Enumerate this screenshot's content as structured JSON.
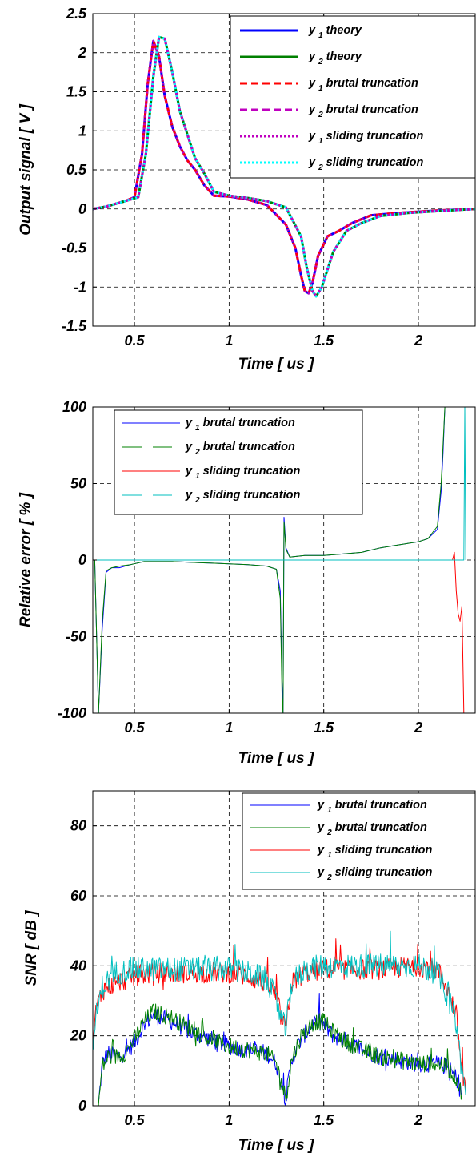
{
  "chart_data": [
    {
      "type": "line",
      "title": "",
      "xlabel": "Time [ us ]",
      "ylabel": "Output signal [ V ]",
      "xlim": [
        0.28,
        2.3
      ],
      "ylim": [
        -1.5,
        2.5
      ],
      "xticks": [
        0.5,
        1,
        1.5,
        2
      ],
      "xtick_labels": [
        "0.5",
        "1",
        "1.5",
        "2"
      ],
      "yticks": [
        -1.5,
        -1,
        -0.5,
        0,
        0.5,
        1,
        1.5,
        2,
        2.5
      ],
      "ytick_labels": [
        "-1.5",
        "-1",
        "-0.5",
        "0",
        "0.5",
        "1",
        "1.5",
        "2",
        "2.5"
      ],
      "grid": true,
      "legend_position": "top-right",
      "series": [
        {
          "name": "y1 theory",
          "base": "y",
          "sub": "1",
          "tail": "theory",
          "color": "#0000ff",
          "style": "solid",
          "x": [
            0.28,
            0.35,
            0.45,
            0.5,
            0.54,
            0.57,
            0.6,
            0.63,
            0.66,
            0.7,
            0.74,
            0.78,
            0.82,
            0.87,
            0.92,
            1.0,
            1.1,
            1.2,
            1.3,
            1.35,
            1.38,
            1.4,
            1.42,
            1.44,
            1.47,
            1.52,
            1.58,
            1.65,
            1.75,
            1.9,
            2.1,
            2.3
          ],
          "y": [
            0,
            0.03,
            0.1,
            0.15,
            0.7,
            1.6,
            2.15,
            1.95,
            1.45,
            1.05,
            0.8,
            0.62,
            0.5,
            0.3,
            0.17,
            0.16,
            0.12,
            0.05,
            -0.2,
            -0.5,
            -0.85,
            -1.05,
            -1.08,
            -0.95,
            -0.6,
            -0.35,
            -0.28,
            -0.18,
            -0.08,
            -0.05,
            -0.02,
            0
          ]
        },
        {
          "name": "y2 theory",
          "base": "y",
          "sub": "2",
          "tail": "theory",
          "color": "#008000",
          "style": "solid",
          "x": [
            0.28,
            0.35,
            0.45,
            0.52,
            0.56,
            0.6,
            0.63,
            0.66,
            0.7,
            0.74,
            0.78,
            0.82,
            0.87,
            0.92,
            1.0,
            1.1,
            1.2,
            1.3,
            1.38,
            1.41,
            1.44,
            1.46,
            1.49,
            1.55,
            1.62,
            1.7,
            1.8,
            1.95,
            2.15,
            2.3
          ],
          "y": [
            0,
            0.03,
            0.1,
            0.15,
            0.7,
            1.7,
            2.2,
            2.18,
            1.75,
            1.25,
            0.95,
            0.65,
            0.45,
            0.22,
            0.17,
            0.14,
            0.1,
            0.02,
            -0.35,
            -0.75,
            -1.05,
            -1.12,
            -1.0,
            -0.55,
            -0.28,
            -0.18,
            -0.09,
            -0.05,
            -0.02,
            0
          ]
        },
        {
          "name": "y1 brutal truncation",
          "base": "y",
          "sub": "1",
          "tail": "brutal truncation",
          "color": "#ff0000",
          "style": "dashed",
          "same_as": "y1 theory"
        },
        {
          "name": "y2 brutal truncation",
          "base": "y",
          "sub": "2",
          "tail": "brutal truncation",
          "color": "#bf00bf",
          "style": "dashed",
          "same_as": "y2 theory"
        },
        {
          "name": "y1 sliding truncation",
          "base": "y",
          "sub": "1",
          "tail": "sliding truncation",
          "color": "#bf00bf",
          "style": "dotted",
          "same_as": "y1 theory"
        },
        {
          "name": "y2 sliding truncation",
          "base": "y",
          "sub": "2",
          "tail": "sliding truncation",
          "color": "#00ffff",
          "style": "dotted",
          "same_as": "y2 theory"
        }
      ]
    },
    {
      "type": "line",
      "title": "",
      "xlabel": "Time [ us ]",
      "ylabel": "Relative error [ % ]",
      "xlim": [
        0.28,
        2.3
      ],
      "ylim": [
        -100,
        100
      ],
      "xticks": [
        0.5,
        1,
        1.5,
        2
      ],
      "xtick_labels": [
        "0.5",
        "1",
        "1.5",
        "2"
      ],
      "yticks": [
        -100,
        -50,
        0,
        50,
        100
      ],
      "ytick_labels": [
        "-100",
        "-50",
        "0",
        "50",
        "100"
      ],
      "grid": true,
      "legend_position": "top-left",
      "series": [
        {
          "name": "y1 brutal truncation",
          "base": "y",
          "sub": "1",
          "tail": "brutal truncation",
          "color": "#0000ff",
          "style": "solid",
          "x": [
            0.29,
            0.31,
            0.33,
            0.35,
            0.38,
            0.42,
            0.48,
            0.55,
            0.7,
            0.9,
            1.1,
            1.2,
            1.25,
            1.27,
            1.28,
            1.285,
            1.29,
            1.3,
            1.32,
            1.4,
            1.5,
            1.6,
            1.7,
            1.8,
            1.9,
            2.0,
            2.05,
            2.1,
            2.12,
            2.13,
            2.14,
            2.15
          ],
          "y": [
            0,
            -100,
            -45,
            -8,
            -5,
            -5,
            -3,
            -1,
            -1,
            -2,
            -3,
            -4,
            -6,
            -20,
            -80,
            -100,
            28,
            8,
            2,
            3,
            3,
            4,
            5,
            8,
            10,
            12,
            14,
            20,
            45,
            70,
            100,
            100
          ]
        },
        {
          "name": "y2 brutal truncation",
          "base": "y",
          "sub": "2",
          "tail": "brutal truncation",
          "color": "#008000",
          "style": "dashed",
          "x": [
            0.29,
            0.31,
            0.33,
            0.35,
            0.38,
            0.42,
            0.48,
            0.55,
            0.7,
            0.9,
            1.1,
            1.2,
            1.25,
            1.27,
            1.28,
            1.285,
            1.29,
            1.3,
            1.32,
            1.4,
            1.5,
            1.6,
            1.7,
            1.8,
            1.9,
            2.0,
            2.05,
            2.1,
            2.12,
            2.13,
            2.14,
            2.15
          ],
          "y": [
            0,
            -100,
            -40,
            -7,
            -5,
            -4,
            -3,
            -1,
            -1,
            -2,
            -3,
            -4,
            -6,
            -25,
            -90,
            -100,
            25,
            7,
            2,
            3,
            3,
            4,
            5,
            8,
            10,
            12,
            14,
            22,
            50,
            75,
            100,
            100
          ]
        },
        {
          "name": "y1 sliding truncation",
          "base": "y",
          "sub": "1",
          "tail": "sliding truncation",
          "color": "#ff0000",
          "style": "solid",
          "x": [
            0.28,
            0.5,
            1.0,
            1.5,
            2.0,
            2.18,
            2.19,
            2.2,
            2.21,
            2.22,
            2.23,
            2.24
          ],
          "y": [
            0,
            0,
            0,
            0,
            0,
            0,
            5,
            -20,
            -35,
            -40,
            -30,
            -100
          ]
        },
        {
          "name": "y2 sliding truncation",
          "base": "y",
          "sub": "2",
          "tail": "sliding truncation",
          "color": "#00bfbf",
          "style": "dashed",
          "x": [
            0.28,
            0.5,
            1.0,
            1.5,
            2.0,
            2.2,
            2.24,
            2.245,
            2.25
          ],
          "y": [
            0,
            0,
            0,
            0,
            0,
            0,
            0,
            100,
            0
          ]
        }
      ]
    },
    {
      "type": "line",
      "title": "",
      "xlabel": "Time [ us ]",
      "ylabel": "SNR [ dB ]",
      "xlim": [
        0.28,
        2.3
      ],
      "ylim": [
        0,
        90
      ],
      "xticks": [
        0.5,
        1,
        1.5,
        2
      ],
      "xtick_labels": [
        "0.5",
        "1",
        "1.5",
        "2"
      ],
      "yticks": [
        0,
        20,
        40,
        60,
        80
      ],
      "ytick_labels": [
        "0",
        "20",
        "40",
        "60",
        "80"
      ],
      "grid": true,
      "legend_position": "top-right",
      "series": [
        {
          "name": "y1 brutal truncation",
          "base": "y",
          "sub": "1",
          "tail": "brutal truncation",
          "color": "#0000ff",
          "style": "solid",
          "x": [
            0.31,
            0.33,
            0.36,
            0.4,
            0.45,
            0.5,
            0.55,
            0.6,
            0.7,
            0.8,
            0.9,
            1.0,
            1.1,
            1.2,
            1.25,
            1.28,
            1.3,
            1.33,
            1.38,
            1.45,
            1.5,
            1.55,
            1.6,
            1.7,
            1.8,
            1.9,
            2.0,
            2.1,
            2.15,
            2.2,
            2.23
          ],
          "y": [
            0,
            12,
            15,
            14,
            15,
            18,
            23,
            26,
            24,
            21,
            19,
            17,
            16,
            15,
            12,
            5,
            2,
            13,
            19,
            24,
            23,
            20,
            19,
            16,
            14,
            13,
            12,
            12,
            11,
            8,
            3
          ],
          "noise": 2.5
        },
        {
          "name": "y2 brutal truncation",
          "base": "y",
          "sub": "2",
          "tail": "brutal truncation",
          "color": "#008000",
          "style": "solid",
          "x": [
            0.31,
            0.33,
            0.36,
            0.4,
            0.45,
            0.5,
            0.55,
            0.6,
            0.7,
            0.8,
            0.9,
            1.0,
            1.1,
            1.2,
            1.25,
            1.28,
            1.3,
            1.33,
            1.38,
            1.45,
            1.5,
            1.55,
            1.6,
            1.7,
            1.8,
            1.9,
            2.0,
            2.1,
            2.15,
            2.2,
            2.23
          ],
          "y": [
            0,
            11,
            14,
            14,
            15,
            19,
            24,
            27,
            25,
            22,
            19,
            17,
            16,
            15,
            12,
            6,
            2,
            13,
            20,
            24,
            24,
            21,
            19,
            16,
            14,
            13,
            12,
            12,
            11,
            8,
            3
          ],
          "noise": 2.5
        },
        {
          "name": "y1 sliding truncation",
          "base": "y",
          "sub": "1",
          "tail": "sliding truncation",
          "color": "#ff0000",
          "style": "solid",
          "x": [
            0.28,
            0.3,
            0.33,
            0.4,
            0.5,
            0.6,
            0.8,
            1.0,
            1.1,
            1.2,
            1.25,
            1.28,
            1.3,
            1.33,
            1.4,
            1.5,
            1.8,
            2.0,
            2.1,
            2.15,
            2.2,
            2.22,
            2.25
          ],
          "y": [
            20,
            28,
            33,
            35,
            37,
            38,
            38,
            38,
            37,
            35,
            31,
            24,
            22,
            35,
            38,
            39,
            39,
            40,
            39,
            34,
            26,
            15,
            3
          ],
          "noise": 3
        },
        {
          "name": "y2 sliding truncation",
          "base": "y",
          "sub": "2",
          "tail": "sliding truncation",
          "color": "#00bfbf",
          "style": "solid",
          "x": [
            0.28,
            0.3,
            0.33,
            0.4,
            0.5,
            0.6,
            0.8,
            1.0,
            1.1,
            1.2,
            1.25,
            1.28,
            1.3,
            1.33,
            1.4,
            1.5,
            1.8,
            2.0,
            2.1,
            2.15,
            2.2,
            2.22,
            2.25
          ],
          "y": [
            18,
            26,
            34,
            38,
            39,
            39,
            39,
            39,
            38,
            36,
            30,
            24,
            22,
            35,
            39,
            40,
            40,
            40,
            38,
            32,
            24,
            14,
            3
          ],
          "noise": 3.5
        }
      ]
    }
  ]
}
